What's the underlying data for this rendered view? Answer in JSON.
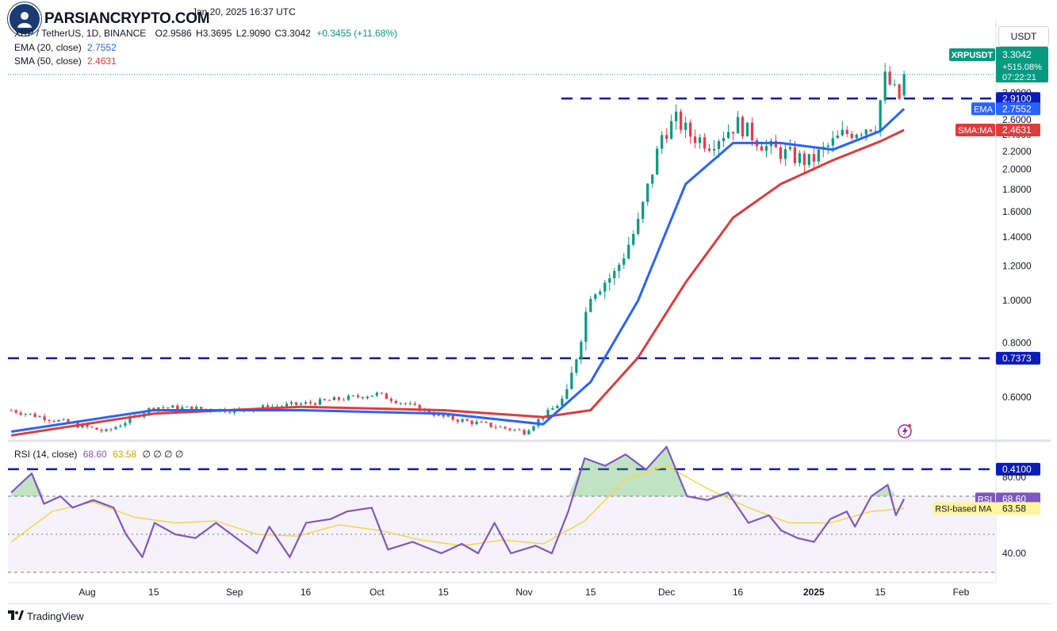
{
  "header": {
    "logo_text": "PARSIANCRYPTO.COM",
    "date_text": "Jan 20, 2025 16:37 UTC",
    "symbol_line": "XRP / TetherUS, 1D, BINANCE",
    "open_label": "O",
    "open_value": "2.9586",
    "high_label": "H",
    "high_value": "3.3695",
    "low_label": "L",
    "low_value": "2.9090",
    "close_label": "C",
    "close_value": "3.3042",
    "change_value": "+0.3455 (+11.68%)",
    "ema_label": "EMA (20, close)",
    "ema_value": "2.7552",
    "sma_label": "SMA (50, close)",
    "sma_value": "2.4631",
    "currency_button": "USDT"
  },
  "price_scale": {
    "ticks": [
      "3.0000",
      "2.8000",
      "2.6000",
      "2.4000",
      "2.2000",
      "2.0000",
      "1.8000",
      "1.6000",
      "1.4000",
      "1.2000",
      "1.0000",
      "0.8000",
      "0.6000"
    ]
  },
  "badges": {
    "price_symbol": "XRPUSDT",
    "price_value": "3.3042",
    "price_change": "+515.08%",
    "countdown": "07:22:21",
    "resistance_value": "2.9100",
    "ema_tag": "EMA",
    "ema_value": "2.7552",
    "sma_tag": "SMA:MA",
    "sma_value": "2.4631",
    "level_mid": "0.7373",
    "level_low": "0.4100"
  },
  "rsi_panel": {
    "legend_label": "RSI (14, close)",
    "rsi_value": "68.60",
    "rsi_ma_value": "63.58",
    "extra": "∅ ∅ ∅ ∅",
    "ticks": [
      "80.00",
      "40.00"
    ],
    "rsi_tag": "RSI",
    "rsi_tag_value": "68.60",
    "ma_tag": "RSI-based MA",
    "ma_tag_value": "63.58"
  },
  "time_axis": {
    "labels": [
      "Aug",
      "15",
      "Sep",
      "16",
      "Oct",
      "15",
      "Nov",
      "15",
      "Dec",
      "16",
      "2025",
      "15",
      "Feb"
    ]
  },
  "footer": {
    "brand": "TradingView"
  },
  "colors": {
    "up": "#089981",
    "down": "#f23645",
    "ema": "#2962ff",
    "sma": "#e03b3b",
    "rsi": "#7e57c2",
    "rsi_ma": "#f7d54a",
    "level": "#0d1bb8",
    "price_badge": "#089981"
  },
  "chart_data": {
    "type": "line",
    "title": "XRP / TetherUS, 1D, BINANCE",
    "x_range": [
      "2024-07-16",
      "2025-02-14"
    ],
    "y_range": [
      0.39,
      3.5
    ],
    "price_scale": "log",
    "series": [
      {
        "name": "XRPUSDT",
        "x": [
          "2024-07-16",
          "2024-08-05",
          "2024-08-15",
          "2024-09-01",
          "2024-09-16",
          "2024-10-01",
          "2024-10-15",
          "2024-11-01",
          "2024-11-10",
          "2024-11-15",
          "2024-11-20",
          "2024-11-25",
          "2024-11-30",
          "2024-12-03",
          "2024-12-06",
          "2024-12-10",
          "2024-12-16",
          "2024-12-22",
          "2024-12-31",
          "2025-01-07",
          "2025-01-14",
          "2025-01-16",
          "2025-01-19",
          "2025-01-20"
        ],
        "values": [
          0.56,
          0.5,
          0.57,
          0.56,
          0.58,
          0.61,
          0.54,
          0.5,
          0.6,
          1.05,
          1.15,
          1.5,
          2.4,
          2.6,
          2.4,
          2.3,
          2.55,
          2.25,
          2.08,
          2.4,
          2.55,
          3.25,
          2.91,
          3.3042
        ]
      },
      {
        "name": "EMA (20, close)",
        "x": [
          "2024-07-16",
          "2024-08-15",
          "2024-09-15",
          "2024-10-15",
          "2024-11-05",
          "2024-11-15",
          "2024-11-25",
          "2024-12-05",
          "2024-12-15",
          "2024-12-25",
          "2025-01-05",
          "2025-01-15",
          "2025-01-20"
        ],
        "values": [
          0.5,
          0.56,
          0.56,
          0.55,
          0.52,
          0.65,
          1.0,
          1.85,
          2.3,
          2.3,
          2.22,
          2.45,
          2.7552
        ]
      },
      {
        "name": "SMA (50, close)",
        "x": [
          "2024-07-16",
          "2024-08-15",
          "2024-09-15",
          "2024-10-15",
          "2024-11-05",
          "2024-11-15",
          "2024-11-25",
          "2024-12-05",
          "2024-12-15",
          "2024-12-25",
          "2025-01-05",
          "2025-01-15",
          "2025-01-20"
        ],
        "values": [
          0.49,
          0.55,
          0.57,
          0.56,
          0.54,
          0.56,
          0.74,
          1.1,
          1.55,
          1.85,
          2.1,
          2.32,
          2.4631
        ]
      }
    ],
    "levels": [
      2.91,
      0.7373,
      0.41
    ],
    "rsi": {
      "ylim": [
        30,
        100
      ],
      "bands": [
        70,
        30
      ],
      "values": [
        [
          0,
          72
        ],
        [
          5,
          82
        ],
        [
          8,
          66
        ],
        [
          12,
          70
        ],
        [
          15,
          64
        ],
        [
          20,
          68
        ],
        [
          25,
          64
        ],
        [
          28,
          50
        ],
        [
          32,
          38
        ],
        [
          35,
          56
        ],
        [
          40,
          50
        ],
        [
          45,
          48
        ],
        [
          50,
          56
        ],
        [
          55,
          48
        ],
        [
          60,
          40
        ],
        [
          63,
          54
        ],
        [
          68,
          38
        ],
        [
          72,
          56
        ],
        [
          78,
          58
        ],
        [
          82,
          62
        ],
        [
          88,
          64
        ],
        [
          92,
          42
        ],
        [
          98,
          46
        ],
        [
          105,
          40
        ],
        [
          110,
          45
        ],
        [
          114,
          40
        ],
        [
          118,
          56
        ],
        [
          122,
          40
        ],
        [
          128,
          44
        ],
        [
          132,
          40
        ],
        [
          136,
          62
        ],
        [
          140,
          90
        ],
        [
          145,
          86
        ],
        [
          150,
          92
        ],
        [
          155,
          84
        ],
        [
          160,
          96
        ],
        [
          165,
          70
        ],
        [
          170,
          68
        ],
        [
          175,
          72
        ],
        [
          180,
          56
        ],
        [
          185,
          60
        ],
        [
          188,
          52
        ],
        [
          192,
          48
        ],
        [
          196,
          46
        ],
        [
          200,
          58
        ],
        [
          204,
          62
        ],
        [
          206,
          54
        ],
        [
          210,
          70
        ],
        [
          214,
          76
        ],
        [
          216,
          60
        ],
        [
          218,
          68.6
        ]
      ],
      "ma": [
        [
          0,
          46
        ],
        [
          10,
          62
        ],
        [
          20,
          67
        ],
        [
          30,
          59
        ],
        [
          40,
          56
        ],
        [
          50,
          57
        ],
        [
          60,
          50
        ],
        [
          70,
          49
        ],
        [
          80,
          55
        ],
        [
          90,
          52
        ],
        [
          100,
          47
        ],
        [
          110,
          44
        ],
        [
          120,
          47
        ],
        [
          130,
          45
        ],
        [
          140,
          57
        ],
        [
          150,
          79
        ],
        [
          160,
          86
        ],
        [
          170,
          74
        ],
        [
          180,
          64
        ],
        [
          190,
          56
        ],
        [
          200,
          56
        ],
        [
          210,
          62
        ],
        [
          218,
          63.58
        ]
      ]
    }
  }
}
